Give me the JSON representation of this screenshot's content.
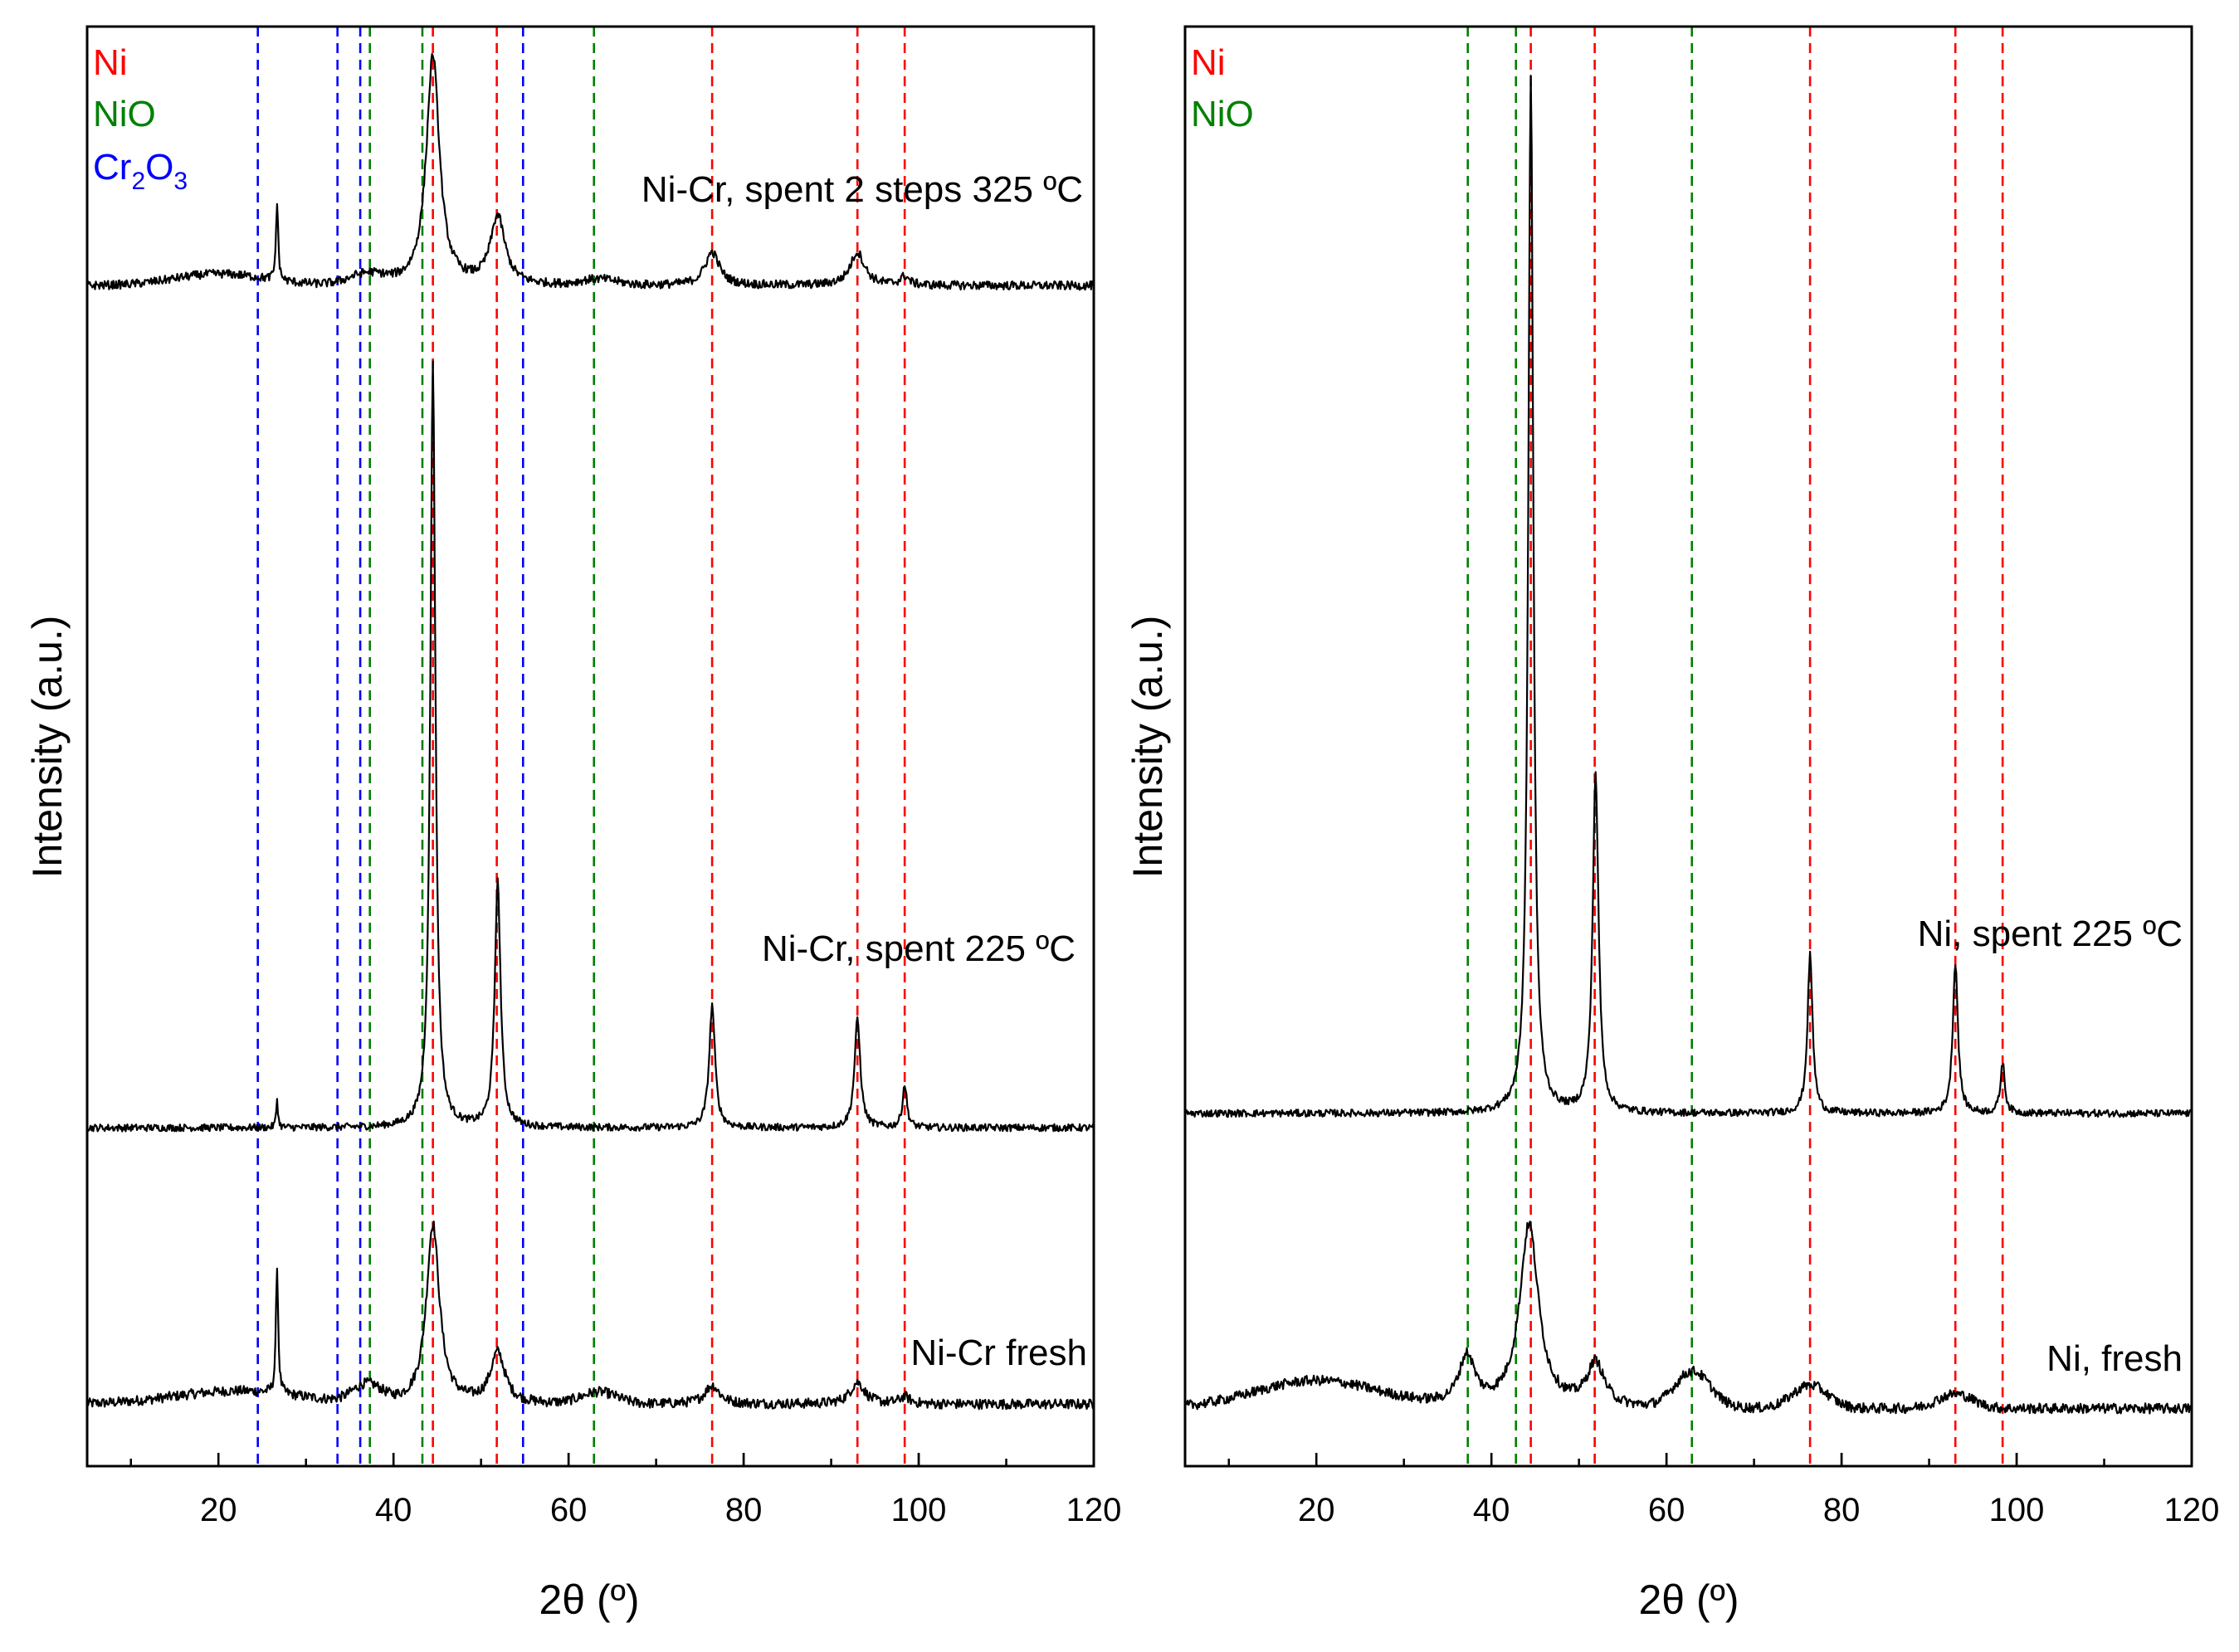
{
  "chart_data": [
    {
      "type": "line",
      "panel": "left",
      "xlabel": "2θ (º)",
      "ylabel": "Intensity (a.u.)",
      "xlim": [
        5,
        120
      ],
      "ylim": [
        0,
        100
      ],
      "xticks": [
        20,
        40,
        60,
        80,
        100,
        120
      ],
      "x_minor_step": 5,
      "legend": [
        {
          "name": "Ni",
          "color": "#ff0000"
        },
        {
          "name": "NiO",
          "color": "#008000"
        },
        {
          "name": "Cr",
          "sub1": "2",
          "mid": "O",
          "sub2": "3",
          "color": "#0000ff"
        }
      ],
      "reference_lines": {
        "Ni": [
          44.5,
          51.8,
          76.4,
          93.0,
          98.4
        ],
        "NiO": [
          37.3,
          43.3,
          62.9
        ],
        "Cr2O3": [
          24.5,
          33.6,
          36.2,
          54.8
        ]
      },
      "series": [
        {
          "name": "Ni-Cr fresh",
          "baseline": 4.3,
          "noise": 0.35,
          "humps": [
            [
              22,
              0.9,
              7
            ],
            [
              37,
              1.2,
              1.6
            ],
            [
              63.5,
              0.8,
              2.0
            ]
          ],
          "peaks": [
            [
              26.7,
              9.0,
              0.15
            ],
            [
              44.5,
              12.5,
              0.9
            ],
            [
              51.9,
              3.5,
              1.0
            ],
            [
              76.4,
              1.3,
              1.0
            ],
            [
              93.0,
              1.5,
              1.0
            ],
            [
              98.4,
              0.5,
              0.7
            ]
          ]
        },
        {
          "name": "Ni-Cr, spent 225 ºC",
          "baseline": 23.5,
          "noise": 0.25,
          "humps": [],
          "peaks": [
            [
              26.7,
              2.0,
              0.12
            ],
            [
              44.5,
              53.0,
              0.35
            ],
            [
              51.9,
              17.0,
              0.4
            ],
            [
              76.4,
              8.5,
              0.4
            ],
            [
              93.0,
              7.5,
              0.4
            ],
            [
              98.4,
              3.0,
              0.3
            ]
          ]
        },
        {
          "name": "Ni-Cr, spent 2 steps 325 ºC",
          "baseline": 82.0,
          "noise": 0.3,
          "humps": [
            [
              20,
              0.8,
              5
            ],
            [
              37,
              0.7,
              2.0
            ],
            [
              63.5,
              0.4,
              2.0
            ]
          ],
          "peaks": [
            [
              26.7,
              5.5,
              0.15
            ],
            [
              44.5,
              16.0,
              0.9
            ],
            [
              51.9,
              4.7,
              1.0
            ],
            [
              76.4,
              2.3,
              1.0
            ],
            [
              93.0,
              2.3,
              1.0
            ],
            [
              98.4,
              0.6,
              0.6
            ]
          ]
        }
      ]
    },
    {
      "type": "line",
      "panel": "right",
      "xlabel": "2θ (º)",
      "ylabel": "Intensity (a.u.)",
      "xlim": [
        5,
        120
      ],
      "ylim": [
        0,
        100
      ],
      "xticks": [
        20,
        40,
        60,
        80,
        100,
        120
      ],
      "x_minor_step": 5,
      "legend": [
        {
          "name": "Ni",
          "color": "#ff0000"
        },
        {
          "name": "NiO",
          "color": "#008000"
        }
      ],
      "reference_lines": {
        "Ni": [
          44.5,
          51.8,
          76.4,
          93.0,
          98.4
        ],
        "NiO": [
          37.3,
          42.8,
          62.9
        ]
      },
      "series": [
        {
          "name": "Ni, fresh",
          "baseline": 4.0,
          "noise": 0.35,
          "humps": [
            [
              20,
              1.9,
              7
            ],
            [
              63,
              2.5,
              2.0
            ],
            [
              76.4,
              1.6,
              2.0
            ],
            [
              93,
              1.0,
              2.0
            ]
          ],
          "peaks": [
            [
              37.2,
              3.4,
              1.1
            ],
            [
              44.3,
              12.7,
              1.3
            ],
            [
              51.9,
              3.0,
              1.2
            ]
          ]
        },
        {
          "name": "Ni, spent 225 ºC",
          "baseline": 24.5,
          "noise": 0.25,
          "humps": [],
          "peaks": [
            [
              44.5,
              72.0,
              0.35
            ],
            [
              51.9,
              23.5,
              0.4
            ],
            [
              76.4,
              11.0,
              0.35
            ],
            [
              93.0,
              10.5,
              0.35
            ],
            [
              98.4,
              3.5,
              0.3
            ]
          ]
        }
      ]
    }
  ]
}
